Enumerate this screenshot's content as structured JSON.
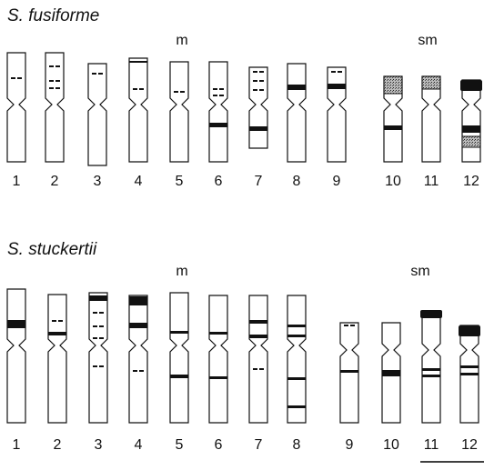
{
  "panels": [
    {
      "title": "S. fusiforme",
      "group_labels": [
        "m",
        "sm"
      ],
      "labels": [
        "1",
        "2",
        "3",
        "4",
        "5",
        "6",
        "7",
        "8",
        "9",
        "10",
        "11",
        "12"
      ]
    },
    {
      "title": "S. stuckertii",
      "group_labels": [
        "m",
        "sm"
      ],
      "labels": [
        "1",
        "2",
        "3",
        "4",
        "5",
        "6",
        "7",
        "8",
        "9",
        "10",
        "11",
        "12"
      ]
    }
  ]
}
